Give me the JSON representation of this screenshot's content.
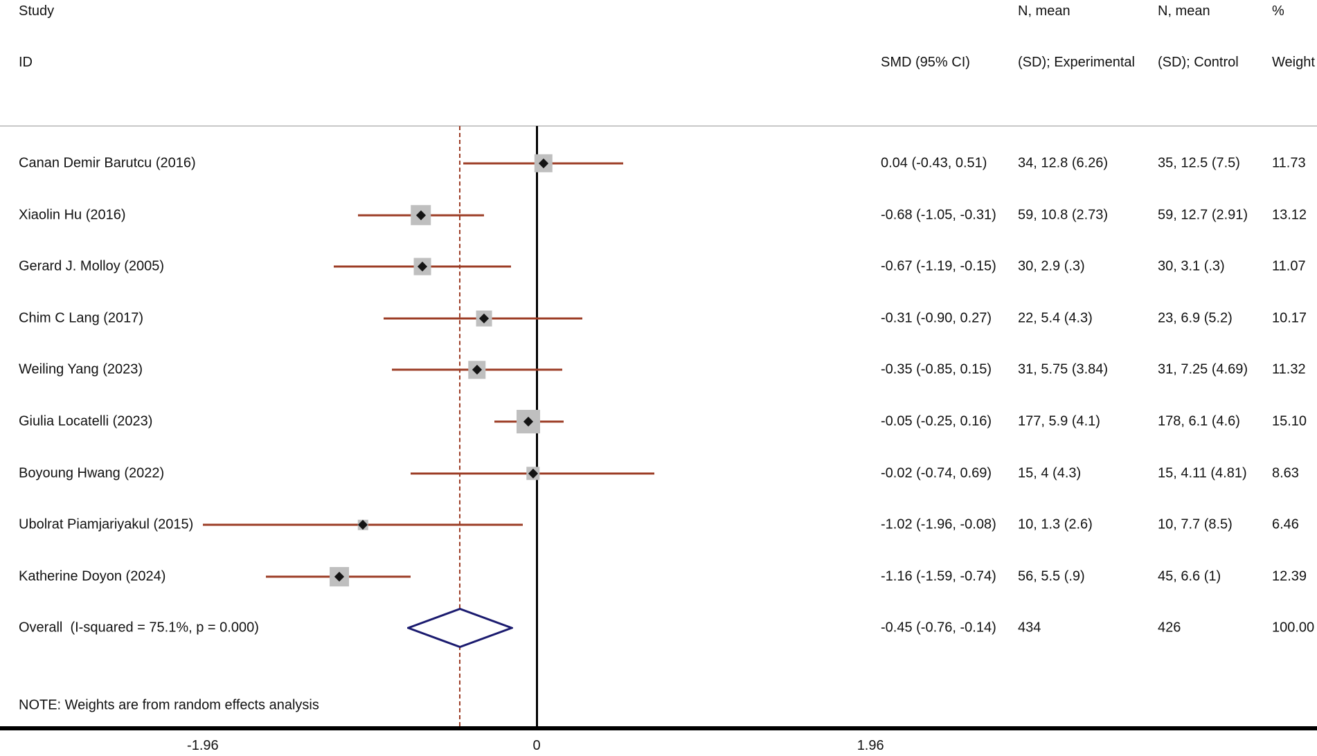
{
  "chart_data": {
    "type": "scatter",
    "variant": "forest-plot",
    "header": {
      "study_line1": "Study",
      "study_line2": "ID",
      "smd_col": "SMD (95% CI)",
      "experimental_col_line1": "N, mean",
      "experimental_col_line2": "(SD); Experimental",
      "control_col_line1": "N, mean",
      "control_col_line2": "(SD); Control",
      "weight_col_line1": "%",
      "weight_col_line2": "Weight"
    },
    "studies": [
      {
        "id": "Canan Demir Barutcu (2016)",
        "smd": 0.04,
        "ci_low": -0.43,
        "ci_high": 0.51,
        "smd_label": "0.04 (-0.43, 0.51)",
        "experimental": "34, 12.8 (6.26)",
        "control": "35, 12.5 (7.5)",
        "weight": 11.73,
        "weight_label": "11.73"
      },
      {
        "id": "Xiaolin Hu (2016)",
        "smd": -0.68,
        "ci_low": -1.05,
        "ci_high": -0.31,
        "smd_label": "-0.68 (-1.05, -0.31)",
        "experimental": "59, 10.8 (2.73)",
        "control": "59, 12.7 (2.91)",
        "weight": 13.12,
        "weight_label": "13.12"
      },
      {
        "id": "Gerard J. Molloy (2005)",
        "smd": -0.67,
        "ci_low": -1.19,
        "ci_high": -0.15,
        "smd_label": "-0.67 (-1.19, -0.15)",
        "experimental": "30, 2.9 (.3)",
        "control": "30, 3.1 (.3)",
        "weight": 11.07,
        "weight_label": "11.07"
      },
      {
        "id": "Chim C Lang (2017)",
        "smd": -0.31,
        "ci_low": -0.9,
        "ci_high": 0.27,
        "smd_label": "-0.31 (-0.90, 0.27)",
        "experimental": "22, 5.4 (4.3)",
        "control": "23, 6.9 (5.2)",
        "weight": 10.17,
        "weight_label": "10.17"
      },
      {
        "id": "Weiling Yang (2023)",
        "smd": -0.35,
        "ci_low": -0.85,
        "ci_high": 0.15,
        "smd_label": "-0.35 (-0.85, 0.15)",
        "experimental": "31, 5.75 (3.84)",
        "control": "31, 7.25 (4.69)",
        "weight": 11.32,
        "weight_label": "11.32"
      },
      {
        "id": "Giulia Locatelli (2023)",
        "smd": -0.05,
        "ci_low": -0.25,
        "ci_high": 0.16,
        "smd_label": "-0.05 (-0.25, 0.16)",
        "experimental": "177, 5.9 (4.1)",
        "control": "178, 6.1 (4.6)",
        "weight": 15.1,
        "weight_label": "15.10"
      },
      {
        "id": "Boyoung Hwang (2022)",
        "smd": -0.02,
        "ci_low": -0.74,
        "ci_high": 0.69,
        "smd_label": "-0.02 (-0.74, 0.69)",
        "experimental": "15, 4 (4.3)",
        "control": "15, 4.11 (4.81)",
        "weight": 8.63,
        "weight_label": "8.63"
      },
      {
        "id": "Ubolrat Piamjariyakul (2015)",
        "smd": -1.02,
        "ci_low": -1.96,
        "ci_high": -0.08,
        "smd_label": "-1.02 (-1.96, -0.08)",
        "experimental": "10, 1.3 (2.6)",
        "control": "10, 7.7 (8.5)",
        "weight": 6.46,
        "weight_label": "6.46"
      },
      {
        "id": "Katherine Doyon (2024)",
        "smd": -1.16,
        "ci_low": -1.59,
        "ci_high": -0.74,
        "smd_label": "-1.16 (-1.59, -0.74)",
        "experimental": "56, 5.5 (.9)",
        "control": "45, 6.6 (1)",
        "weight": 12.39,
        "weight_label": "12.39"
      }
    ],
    "overall": {
      "label": "Overall  (I-squared = 75.1%, p = 0.000)",
      "smd": -0.45,
      "ci_low": -0.76,
      "ci_high": -0.14,
      "smd_label": "-0.45 (-0.76, -0.14)",
      "n_experimental": "434",
      "n_control": "426",
      "weight_label": "100.00"
    },
    "note": "NOTE: Weights are from random effects analysis",
    "x_ticks": [
      -1.96,
      0,
      1.96
    ],
    "x_tick_labels": [
      "-1.96",
      "0",
      "1.96"
    ],
    "no_effect_line_x": 0,
    "pooled_line_x": -0.45,
    "colors": {
      "ci_line": "#9c3d26",
      "marker": "#141414",
      "weight_box": "#bfbfbf",
      "diamond_outline": "#1b1b6f",
      "pooled_dashed_line": "#9c3d26",
      "axis": "#000000",
      "separator": "#c8c8c8"
    }
  }
}
